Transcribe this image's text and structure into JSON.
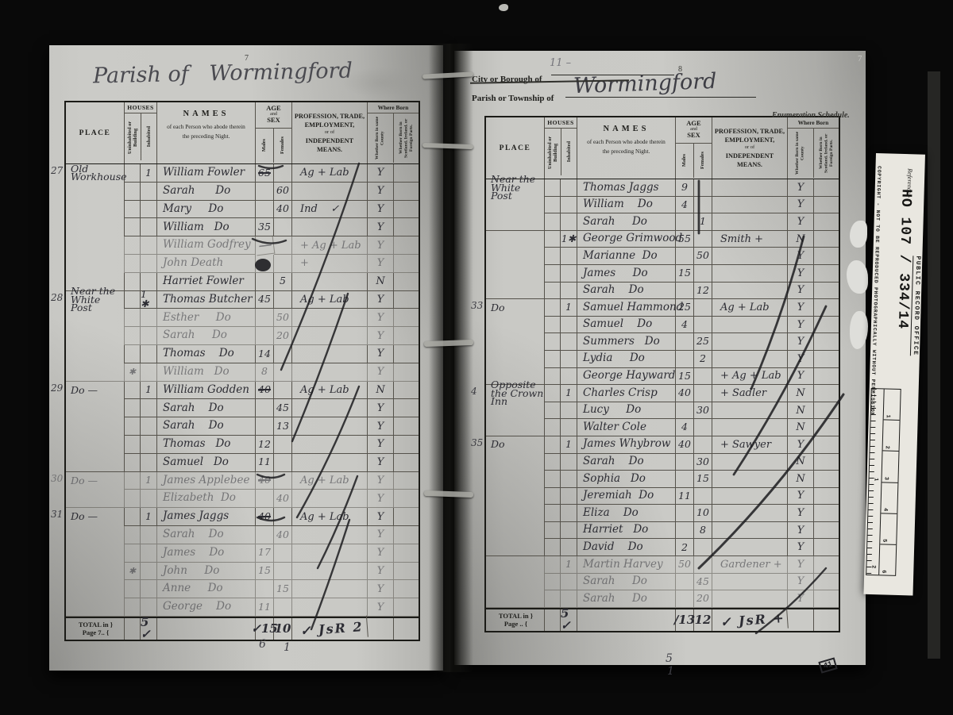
{
  "headers": {
    "place": "PLACE",
    "houses": "HOUSES",
    "uninhabited": "Uninhabited or Building",
    "inhabited": "Inhabited",
    "names_title": "NAMES",
    "names_sub1": "of each Person who abode therein",
    "names_sub2": "the preceding Night.",
    "age1": "AGE",
    "age2": "and",
    "age3": "SEX",
    "males": "Males",
    "females": "Females",
    "prof1": "PROFESSION, TRADE,",
    "prof2": "EMPLOYMENT,",
    "prof3": "or of",
    "prof4": "INDEPENDENT MEANS.",
    "where_born": "Where Born",
    "born_county": "Whether Born in same County",
    "born_foreign": "Whether Born in Scotland, Ireland, or Foreign Parts."
  },
  "left_page": {
    "page_no": "7",
    "title": "Parish of   Wormingford",
    "rows": [
      {
        "margin": "27",
        "place": "Old\nWorkhouse",
        "inh": "1",
        "name": "William Fowler",
        "male": "65",
        "ms": 1,
        "prof": "Ag + Lab",
        "b1": "Y"
      },
      {
        "name": "Sarah      Do",
        "female": "60",
        "b1": "Y"
      },
      {
        "name": "Mary     Do",
        "female": "40",
        "prof": "Ind    ✓",
        "b1": "Y"
      },
      {
        "name": "William   Do",
        "male": "35",
        "b1": "Y"
      },
      {
        "name": "William Godfrey",
        "mblot": "dash",
        "prof": "+ Ag + Lab",
        "b1": "Y",
        "fade": 1
      },
      {
        "name": "John Death",
        "mblot": "blot",
        "prof": "+",
        "b1": "Y",
        "fade": 1
      },
      {
        "name": "Harriet Fowler",
        "female": "5",
        "b1": "N",
        "sep": 1
      },
      {
        "margin": "28",
        "place": "Near the\nWhite Post",
        "inh": "1 ✱",
        "name": "Thomas Butcher",
        "male": "45",
        "prof": "Ag + Lab",
        "b1": "Y"
      },
      {
        "name": "Esther     Do",
        "female": "50",
        "b1": "Y",
        "fade": 1
      },
      {
        "name": "Sarah     Do",
        "female": "20",
        "b1": "Y",
        "fade": 1
      },
      {
        "name": "Thomas    Do",
        "male": "14",
        "b1": "Y"
      },
      {
        "uninh": "✱",
        "name": "William   Do",
        "male": "8",
        "b1": "Y",
        "fade": 1,
        "sep": 1
      },
      {
        "margin": "29",
        "place": "Do —",
        "inh": "1",
        "name": "William Godden",
        "male": "40",
        "ms": 1,
        "prof": "Ag + Lab",
        "b1": "N"
      },
      {
        "name": "Sarah    Do",
        "female": "45",
        "b1": "Y"
      },
      {
        "name": "Sarah    Do",
        "female": "13",
        "b1": "Y"
      },
      {
        "name": "Thomas   Do",
        "male": "12",
        "b1": "Y"
      },
      {
        "name": "Samuel   Do",
        "male": "11",
        "b1": "Y",
        "sep": 1
      },
      {
        "margin": "30",
        "place": "Do —",
        "inh": "1",
        "name": "James Applebee",
        "male": "40",
        "ms": 1,
        "prof": "Ag + Lab",
        "b1": "Y",
        "fade": 1
      },
      {
        "name": "Elizabeth  Do",
        "female": "40",
        "b1": "Y",
        "fade": 1,
        "sep": 1
      },
      {
        "margin": "31",
        "place": "Do —",
        "inh": "1",
        "name": "James Jaggs",
        "male": "40",
        "ms": 1,
        "prof": "Ag + Lab",
        "b1": "Y"
      },
      {
        "name": "Sarah    Do",
        "female": "40",
        "b1": "Y",
        "fade": 1
      },
      {
        "name": "James    Do",
        "male": "17",
        "b1": "Y",
        "fade": 1
      },
      {
        "uninh": "✱",
        "name": "John     Do",
        "male": "15",
        "b1": "Y",
        "fade": 1
      },
      {
        "name": "Anne     Do",
        "female": "15",
        "b1": "Y",
        "fade": 1
      },
      {
        "name": "George    Do",
        "male": "11",
        "b1": "Y",
        "fade": 1,
        "sep": 1
      }
    ],
    "total": {
      "l1": "TOTAL in }",
      "l2": "Page 7.. {",
      "inhabited": "5 ✓",
      "males": "✓15",
      "females": "10",
      "scribble": "✓ JsR 2"
    },
    "below": [
      "6",
      "1"
    ]
  },
  "right_page": {
    "page_no": "8",
    "pencil_note": "11 –",
    "city_label": "City or Borough of",
    "parish_label": "Parish or Township of",
    "parish_value": "Wormingford",
    "schedule": "Enumeration Schedule.",
    "corner_stamp": "41",
    "corner_page": "7",
    "rows": [
      {
        "place": "Near the\nWhite Post",
        "name": "Thomas Jaggs",
        "male": "9",
        "b1": "Y"
      },
      {
        "name": "William    Do",
        "male": "4",
        "b1": "Y"
      },
      {
        "name": "Sarah     Do",
        "female": "1",
        "b1": "Y",
        "sep": 1
      },
      {
        "inh": "1✱",
        "name": "George Grimwood",
        "male": "55",
        "prof": "Smith +",
        "b1": "N"
      },
      {
        "name": "Marianne  Do",
        "female": "50",
        "b1": "Y"
      },
      {
        "name": "James     Do",
        "male": "15",
        "b1": "Y"
      },
      {
        "name": "Sarah    Do",
        "female": "12",
        "b1": "Y",
        "sep": 1
      },
      {
        "margin": "33",
        "place": "Do",
        "inh": "1",
        "name": "Samuel Hammond",
        "male": "25",
        "prof": "Ag + Lab",
        "b1": "Y"
      },
      {
        "name": "Samuel    Do",
        "male": "4",
        "b1": "Y"
      },
      {
        "name": "Summers   Do",
        "female": "25",
        "b1": "Y"
      },
      {
        "name": "Lydia     Do",
        "female": "2",
        "b1": "Y"
      },
      {
        "name": "George Hayward",
        "male": "15",
        "prof": "+ Ag + Lab",
        "b1": "Y",
        "sep": 1
      },
      {
        "margin": "4",
        "place": "Opposite\nthe Crown Inn",
        "inh": "1",
        "name": "Charles Crisp",
        "male": "40",
        "prof": "+ Sadler",
        "b1": "N"
      },
      {
        "name": "Lucy     Do",
        "female": "30",
        "b1": "N"
      },
      {
        "name": "Walter Cole",
        "male": "4",
        "b1": "N",
        "sep": 1
      },
      {
        "margin": "35",
        "place": "Do",
        "inh": "1",
        "name": "James Whybrow",
        "male": "40",
        "prof": "+ Sawyer",
        "b1": "Y"
      },
      {
        "name": "Sarah    Do",
        "female": "30",
        "b1": "N"
      },
      {
        "name": "Sophia   Do",
        "female": "15",
        "b1": "N"
      },
      {
        "name": "Jeremiah  Do",
        "male": "11",
        "b1": "Y"
      },
      {
        "name": "Eliza    Do",
        "female": "10",
        "b1": "Y"
      },
      {
        "name": "Harriet   Do",
        "female": "8",
        "b1": "Y"
      },
      {
        "name": "David    Do",
        "male": "2",
        "b1": "Y",
        "sep": 1
      },
      {
        "inh": "1",
        "name": "Martin Harvey",
        "male": "50",
        "prof": "Gardener +",
        "b1": "Y",
        "fade": 1
      },
      {
        "name": "Sarah     Do",
        "female": "45",
        "b1": "Y",
        "fade": 1
      },
      {
        "name": "Sarah     Do",
        "female": "20",
        "b1": "Y",
        "fade": 1,
        "sep": 1
      }
    ],
    "total": {
      "l1": "TOTAL in }",
      "l2": "Page .. {",
      "inhabited": "5 ✓",
      "males": "∕13",
      "females": "12",
      "scribble": "✓ JsR +"
    },
    "below": [
      "5",
      "1"
    ]
  },
  "strip": {
    "reference_label": "Reference:-",
    "reference": "HO 107 / 334/14",
    "office": "PUBLIC RECORD OFFICE",
    "copyright": "COPYRIGHT - NOT TO BE REPRODUCED PHOTOGRAPHICALLY WITHOUT PERMISSION",
    "ruler_marks": [
      "1",
      "2"
    ],
    "box_numbers": [
      "1",
      "2",
      "3",
      "4",
      "5",
      "6"
    ]
  }
}
